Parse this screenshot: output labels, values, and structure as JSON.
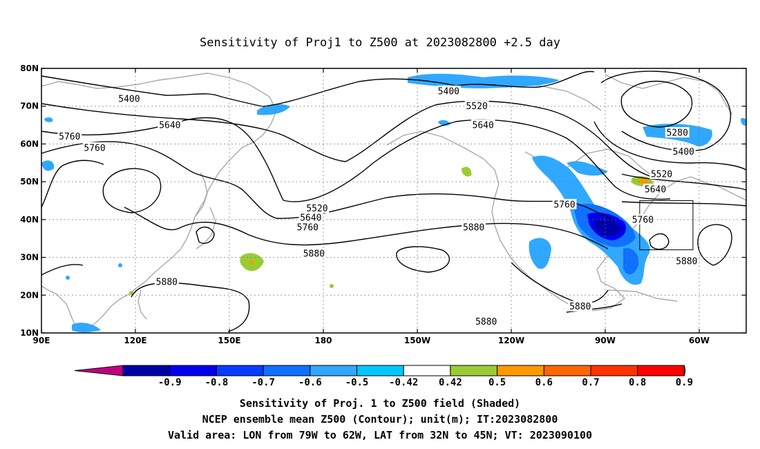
{
  "title": "Sensitivity of Proj1 to Z500 at 2023082800 +2.5 day",
  "map": {
    "lon_ticks": [
      {
        "lon": 90,
        "label": "90E"
      },
      {
        "lon": 120,
        "label": "120E"
      },
      {
        "lon": 150,
        "label": "150E"
      },
      {
        "lon": 180,
        "label": "180"
      },
      {
        "lon": 210,
        "label": "150W"
      },
      {
        "lon": 240,
        "label": "120W"
      },
      {
        "lon": 270,
        "label": "90W"
      },
      {
        "lon": 300,
        "label": "60W"
      }
    ],
    "lat_ticks": [
      {
        "lat": 80,
        "label": "80N"
      },
      {
        "lat": 70,
        "label": "70N"
      },
      {
        "lat": 60,
        "label": "60N"
      },
      {
        "lat": 50,
        "label": "50N"
      },
      {
        "lat": 40,
        "label": "40N"
      },
      {
        "lat": 30,
        "label": "30N"
      },
      {
        "lat": 20,
        "label": "20N"
      },
      {
        "lat": 10,
        "label": "10N"
      }
    ],
    "lon_range": [
      90,
      315
    ],
    "lat_range": [
      10,
      80
    ],
    "grid": true,
    "valid_box": {
      "lon": [
        281,
        298
      ],
      "lat": [
        32,
        45
      ]
    },
    "contour_labels": [
      {
        "text": "5400",
        "lon": 118,
        "lat": 72
      },
      {
        "text": "5640",
        "lon": 131,
        "lat": 65
      },
      {
        "text": "5760",
        "lon": 99,
        "lat": 62
      },
      {
        "text": "5760",
        "lon": 107,
        "lat": 59
      },
      {
        "text": "5520",
        "lon": 178,
        "lat": 43
      },
      {
        "text": "5640",
        "lon": 176,
        "lat": 40.5
      },
      {
        "text": "5760",
        "lon": 175,
        "lat": 38
      },
      {
        "text": "5880",
        "lon": 177,
        "lat": 31
      },
      {
        "text": "5880",
        "lon": 130,
        "lat": 23.5
      },
      {
        "text": "5400",
        "lon": 220,
        "lat": 74
      },
      {
        "text": "5520",
        "lon": 229,
        "lat": 70
      },
      {
        "text": "5640",
        "lon": 231,
        "lat": 65
      },
      {
        "text": "5760",
        "lon": 257,
        "lat": 44
      },
      {
        "text": "5880",
        "lon": 228,
        "lat": 38
      },
      {
        "text": "5880",
        "lon": 262,
        "lat": 17
      },
      {
        "text": "5880",
        "lon": 232,
        "lat": 13
      },
      {
        "text": "5280",
        "lon": 293,
        "lat": 63
      },
      {
        "text": "5400",
        "lon": 295,
        "lat": 58
      },
      {
        "text": "5520",
        "lon": 288,
        "lat": 52
      },
      {
        "text": "5640",
        "lon": 286,
        "lat": 48
      },
      {
        "text": "5760",
        "lon": 282,
        "lat": 40
      },
      {
        "text": "5880",
        "lon": 296,
        "lat": 29
      }
    ]
  },
  "colorbar": {
    "labels": [
      "-0.9",
      "-0.8",
      "-0.7",
      "-0.6",
      "-0.5",
      "-0.42",
      "0.42",
      "0.5",
      "0.6",
      "0.7",
      "0.8",
      "0.9"
    ],
    "colors": [
      "#0000a8",
      "#0000ee",
      "#0a3cff",
      "#1070ff",
      "#30a8ff",
      "#00c8ff",
      "#ffffff",
      "#99cc33",
      "#ff9900",
      "#ff6600",
      "#ff3300",
      "#ff0000"
    ],
    "under_color": "#c0007f",
    "over_color": "#ff9fd0"
  },
  "footer": {
    "line1": "Sensitivity of Proj. 1 to Z500 field (Shaded)",
    "line2": "NCEP ensemble mean Z500 (Contour); unit(m); IT:2023082800",
    "line3": "Valid area: LON from 79W to 62W, LAT from 32N to 45N; VT: 2023090100"
  }
}
